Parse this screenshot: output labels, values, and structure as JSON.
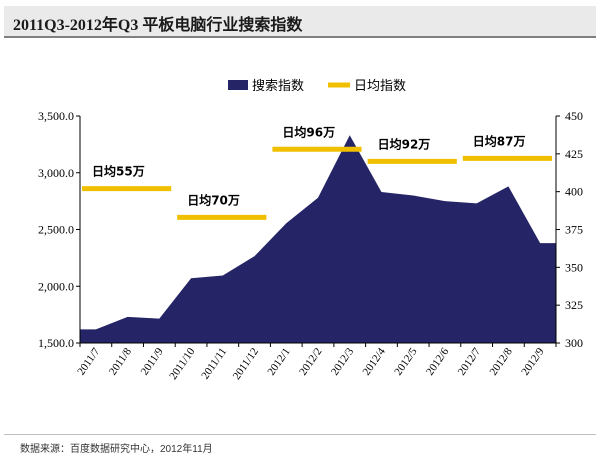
{
  "title": "2011Q3-2012年Q3 平板电脑行业搜索指数",
  "source": "数据来源：百度数据研究中心，2012年11月",
  "colors": {
    "area": "#252466",
    "bar": "#f0c000",
    "axis": "#000000"
  },
  "chart_data": {
    "type": "area",
    "categories": [
      "2011/7",
      "2011/8",
      "2011/9",
      "2011/10",
      "2011/11",
      "2011/12",
      "2012/1",
      "2012/2",
      "2012/3",
      "2012/4",
      "2012/5",
      "2012/6",
      "2012/7",
      "2012/8",
      "2012/9"
    ],
    "series": [
      {
        "name": "搜索指数",
        "axis": "left",
        "values": [
          1620,
          1730,
          1715,
          2070,
          2095,
          2265,
          2555,
          2780,
          3330,
          2830,
          2800,
          2750,
          2730,
          2880,
          2380
        ]
      }
    ],
    "left_axis": {
      "ylim": [
        1500,
        3500
      ],
      "ticks": [
        "1,500.0",
        "2,000.0",
        "2,500.0",
        "3,000.0",
        "3,500.0"
      ],
      "tick_values": [
        1500,
        2000,
        2500,
        3000,
        3500
      ]
    },
    "right_axis": {
      "ylim": [
        300,
        450
      ],
      "ticks": [
        "300",
        "325",
        "350",
        "375",
        "400",
        "425",
        "450"
      ],
      "tick_values": [
        300,
        325,
        350,
        375,
        400,
        425,
        450
      ]
    },
    "daily_average": {
      "name": "日均指数",
      "segments": [
        {
          "label": "日均55万",
          "start": 0,
          "end": 2,
          "value": 402
        },
        {
          "label": "日均70万",
          "start": 3,
          "end": 5,
          "value": 383
        },
        {
          "label": "日均96万",
          "start": 6,
          "end": 8,
          "value": 428
        },
        {
          "label": "日均92万",
          "start": 9,
          "end": 11,
          "value": 420
        },
        {
          "label": "日均87万",
          "start": 12,
          "end": 14,
          "value": 422
        }
      ]
    },
    "legend": [
      {
        "label": "搜索指数",
        "kind": "area"
      },
      {
        "label": "日均指数",
        "kind": "line"
      }
    ],
    "legend_position": "top"
  }
}
